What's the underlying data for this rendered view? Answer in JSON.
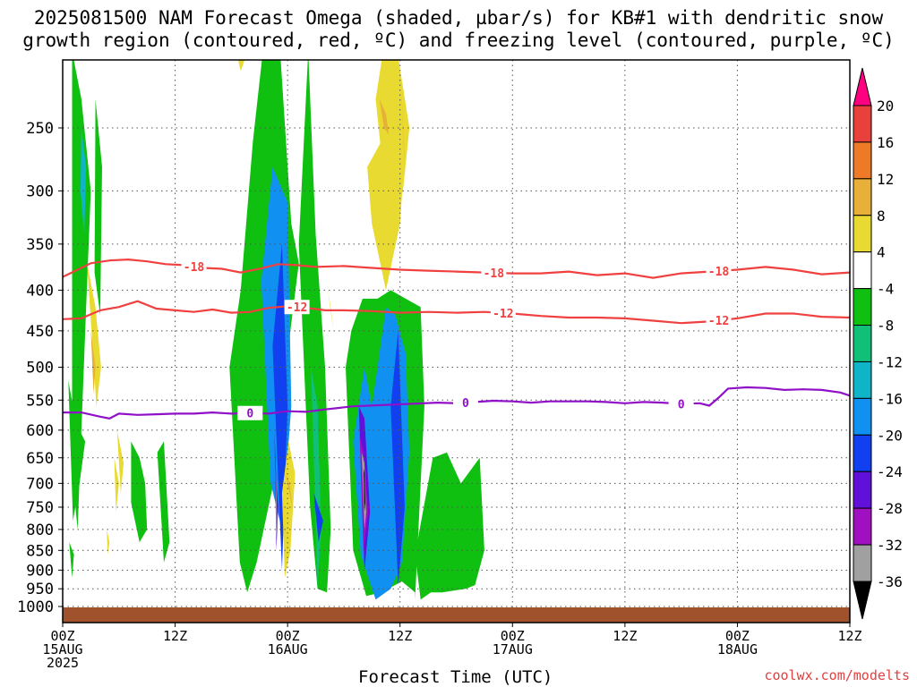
{
  "title_line1": "2025081500 NAM Forecast Omega (shaded, µbar/s) for KB#1 with dendritic snow",
  "title_line2": "growth region (contoured, red, ºC) and freezing level (contoured, purple, ºC)",
  "credit": "coolwx.com/modelts",
  "chart_data": {
    "type": "heatmap",
    "xlabel": "Forecast Time (UTC)",
    "x_ticks": [
      {
        "h": 0,
        "lines": [
          "00Z",
          "15AUG",
          "2025"
        ]
      },
      {
        "h": 12,
        "lines": [
          "12Z"
        ]
      },
      {
        "h": 24,
        "lines": [
          "00Z",
          "16AUG"
        ]
      },
      {
        "h": 36,
        "lines": [
          "12Z"
        ]
      },
      {
        "h": 48,
        "lines": [
          "00Z",
          "17AUG"
        ]
      },
      {
        "h": 60,
        "lines": [
          "12Z"
        ]
      },
      {
        "h": 72,
        "lines": [
          "00Z",
          "18AUG"
        ]
      },
      {
        "h": 84,
        "lines": [
          "12Z"
        ]
      }
    ],
    "xlim": [
      0,
      84
    ],
    "y_ticks": [
      250,
      300,
      350,
      400,
      450,
      500,
      550,
      600,
      650,
      700,
      750,
      800,
      850,
      900,
      950,
      1000
    ],
    "ylim": [
      200,
      1025
    ],
    "y_scale": "log-pressure",
    "grid": true,
    "colorbar": {
      "labels": [
        "20",
        "16",
        "12",
        "8",
        "4",
        "-4",
        "-8",
        "-12",
        "-16",
        "-20",
        "-24",
        "-28",
        "-32",
        "-36"
      ],
      "colors": [
        "#ff0080",
        "#e8403a",
        "#ee7a28",
        "#e8b038",
        "#e8da30",
        "#ffffff",
        "#10c010",
        "#10c078",
        "#10b4c8",
        "#1090f0",
        "#1040f0",
        "#6010d8",
        "#a010c0",
        "#a0a0a0",
        "#000000"
      ]
    },
    "contours": [
      {
        "label": "-18",
        "color": "#f04040",
        "points": [
          [
            0,
            385
          ],
          [
            3,
            370
          ],
          [
            5,
            367
          ],
          [
            7,
            366
          ],
          [
            9,
            368
          ],
          [
            11,
            371
          ],
          [
            13,
            372
          ],
          [
            15,
            375
          ],
          [
            17,
            376
          ],
          [
            19,
            380
          ],
          [
            21,
            376
          ],
          [
            23,
            371
          ],
          [
            25,
            372
          ],
          [
            27,
            374
          ],
          [
            30,
            373
          ],
          [
            33,
            375
          ],
          [
            36,
            377
          ],
          [
            39,
            378
          ],
          [
            42,
            379
          ],
          [
            45,
            380
          ],
          [
            48,
            381
          ],
          [
            51,
            381
          ],
          [
            54,
            379
          ],
          [
            57,
            383
          ],
          [
            60,
            381
          ],
          [
            63,
            386
          ],
          [
            66,
            381
          ],
          [
            69,
            379
          ],
          [
            72,
            377
          ],
          [
            75,
            374
          ],
          [
            78,
            377
          ],
          [
            81,
            382
          ],
          [
            84,
            380
          ]
        ],
        "labels_at": [
          14,
          46,
          70
        ]
      },
      {
        "label": "-12",
        "color": "#f04040",
        "points": [
          [
            0,
            435
          ],
          [
            2,
            434
          ],
          [
            4,
            424
          ],
          [
            6,
            420
          ],
          [
            8,
            413
          ],
          [
            10,
            422
          ],
          [
            12,
            424
          ],
          [
            14,
            426
          ],
          [
            16,
            423
          ],
          [
            18,
            427
          ],
          [
            20,
            426
          ],
          [
            22,
            421
          ],
          [
            24,
            419
          ],
          [
            26,
            421
          ],
          [
            28,
            424
          ],
          [
            30,
            424
          ],
          [
            33,
            425
          ],
          [
            36,
            427
          ],
          [
            39,
            426
          ],
          [
            42,
            427
          ],
          [
            45,
            426
          ],
          [
            48,
            428
          ],
          [
            51,
            431
          ],
          [
            54,
            433
          ],
          [
            57,
            433
          ],
          [
            60,
            434
          ],
          [
            63,
            437
          ],
          [
            66,
            440
          ],
          [
            69,
            438
          ],
          [
            72,
            434
          ],
          [
            75,
            428
          ],
          [
            78,
            428
          ],
          [
            81,
            432
          ],
          [
            84,
            433
          ]
        ],
        "labels_at": [
          25,
          47,
          70
        ]
      },
      {
        "label": "0",
        "color": "#9010c8",
        "points": [
          [
            0,
            570
          ],
          [
            2,
            570
          ],
          [
            4,
            577
          ],
          [
            5,
            580
          ],
          [
            6,
            572
          ],
          [
            8,
            574
          ],
          [
            10,
            573
          ],
          [
            12,
            572
          ],
          [
            14,
            572
          ],
          [
            16,
            570
          ],
          [
            18,
            572
          ],
          [
            20,
            571
          ],
          [
            22,
            572
          ],
          [
            24,
            568
          ],
          [
            26,
            569
          ],
          [
            28,
            565
          ],
          [
            31,
            560
          ],
          [
            34,
            558
          ],
          [
            37,
            556
          ],
          [
            40,
            554
          ],
          [
            42,
            555
          ],
          [
            44,
            553
          ],
          [
            46,
            551
          ],
          [
            48,
            552
          ],
          [
            50,
            554
          ],
          [
            52,
            552
          ],
          [
            54,
            552
          ],
          [
            56,
            552
          ],
          [
            58,
            553
          ],
          [
            60,
            555
          ],
          [
            62,
            553
          ],
          [
            64,
            554
          ],
          [
            66,
            556
          ],
          [
            68,
            555
          ],
          [
            69,
            559
          ],
          [
            70,
            546
          ],
          [
            71,
            532
          ],
          [
            73,
            530
          ],
          [
            75,
            531
          ],
          [
            77,
            534
          ],
          [
            79,
            533
          ],
          [
            81,
            534
          ],
          [
            83,
            538
          ],
          [
            84,
            543
          ]
        ],
        "labels_at": [
          20,
          43,
          66
        ]
      }
    ],
    "shaded_regions": [
      {
        "c": 6,
        "h": [
          1,
          2,
          3,
          2.5,
          2,
          1.6,
          1
        ],
        "p": [
          200,
          230,
          300,
          420,
          600,
          800,
          680
        ]
      },
      {
        "c": 8,
        "h": [
          2,
          2.5,
          2.3,
          1.9
        ],
        "p": [
          250,
          280,
          340,
          300
        ]
      },
      {
        "c": 6,
        "h": [
          3.5,
          4.2,
          4,
          3.4
        ],
        "p": [
          230,
          280,
          430,
          380
        ]
      },
      {
        "c": 6,
        "h": [
          0.6,
          1.1,
          1.8,
          2.4,
          1.8,
          1.1
        ],
        "p": [
          520,
          560,
          600,
          620,
          700,
          780
        ]
      },
      {
        "c": 4,
        "h": [
          2.6,
          3.5,
          4.1,
          3.6
        ],
        "p": [
          370,
          420,
          500,
          560
        ]
      },
      {
        "c": 3,
        "h": [
          3,
          3.5,
          3.3
        ],
        "p": [
          450,
          500,
          540
        ]
      },
      {
        "c": 4,
        "h": [
          5.5,
          6,
          5.7
        ],
        "p": [
          650,
          700,
          760
        ]
      },
      {
        "c": 4,
        "h": [
          4.7,
          5,
          4.8
        ],
        "p": [
          800,
          830,
          860
        ]
      },
      {
        "c": 6,
        "h": [
          0.7,
          1.2,
          1
        ],
        "p": [
          830,
          860,
          920
        ]
      },
      {
        "c": 6,
        "h": [
          7.3,
          8.2,
          8.8,
          9,
          8.2,
          7.3
        ],
        "p": [
          620,
          650,
          700,
          800,
          830,
          740
        ]
      },
      {
        "c": 6,
        "h": [
          17.8,
          19,
          20.3,
          21.8,
          23.2,
          24.4,
          25.2,
          24,
          22.5,
          20.7,
          19.7,
          18.9
        ],
        "p": [
          500,
          400,
          260,
          180,
          200,
          330,
          370,
          480,
          700,
          880,
          960,
          880
        ]
      },
      {
        "c": 9,
        "h": [
          21.2,
          22.4,
          24,
          24.4,
          23.4,
          22.2
        ],
        "p": [
          390,
          280,
          310,
          560,
          800,
          700
        ]
      },
      {
        "c": 10,
        "h": [
          22.4,
          23.4,
          24,
          23.4
        ],
        "p": [
          470,
          350,
          560,
          900
        ]
      },
      {
        "c": 11,
        "h": [
          22.6,
          22.8,
          23,
          22.8
        ],
        "p": [
          600,
          700,
          750,
          850
        ]
      },
      {
        "c": 13,
        "h": [
          22.7,
          22.8,
          22.9,
          22.8
        ],
        "p": [
          650,
          720,
          780,
          820
        ]
      },
      {
        "c": 4,
        "h": [
          23.4,
          24.1,
          24.8,
          24.3,
          23.7
        ],
        "p": [
          720,
          620,
          680,
          850,
          920
        ]
      },
      {
        "c": 3,
        "h": [
          23.8,
          24.2,
          24.6
        ],
        "p": [
          680,
          700,
          760
        ]
      },
      {
        "c": 6,
        "h": [
          25.2,
          26.2,
          27,
          28,
          28.6,
          28.2,
          27.2,
          26.4
        ],
        "p": [
          350,
          200,
          340,
          500,
          800,
          960,
          950,
          750
        ]
      },
      {
        "c": 7,
        "h": [
          26.5,
          27.2,
          27.6,
          27.2
        ],
        "p": [
          500,
          560,
          800,
          940
        ]
      },
      {
        "c": 10,
        "h": [
          26.8,
          27.3,
          27.8,
          27.3
        ],
        "p": [
          720,
          750,
          780,
          830
        ]
      },
      {
        "c": 6,
        "h": [
          30.2,
          30.8,
          32,
          33.6,
          35,
          36.6,
          38.2,
          38.6,
          37.6,
          37.6,
          36.2,
          34,
          32.4,
          31
        ],
        "p": [
          500,
          450,
          410,
          410,
          400,
          410,
          420,
          560,
          980,
          960,
          930,
          960,
          970,
          850
        ]
      },
      {
        "c": 9,
        "h": [
          31,
          32.2,
          33,
          33.6,
          34.5,
          35.5,
          36.6,
          37,
          36.2,
          35,
          33.4,
          31.8
        ],
        "p": [
          620,
          500,
          560,
          500,
          420,
          430,
          480,
          640,
          880,
          950,
          980,
          860
        ]
      },
      {
        "c": 11,
        "h": [
          31.6,
          32.2,
          32.8,
          32.2
        ],
        "p": [
          560,
          580,
          760,
          900
        ]
      },
      {
        "c": 12,
        "h": [
          31.7,
          32.1,
          32.6,
          32.1
        ],
        "p": [
          610,
          640,
          760,
          850
        ]
      },
      {
        "c": 10,
        "h": [
          35,
          35.8,
          36.5,
          35.8
        ],
        "p": [
          560,
          450,
          750,
          940
        ]
      },
      {
        "c": 13,
        "h": [
          31.9,
          32.2,
          32.4,
          32.2
        ],
        "p": [
          640,
          660,
          760,
          800
        ]
      },
      {
        "c": 14,
        "h": [
          32.1,
          32.2,
          32.3,
          32.2
        ],
        "p": [
          670,
          680,
          740,
          760
        ]
      },
      {
        "c": 6,
        "h": [
          37.6,
          39.5,
          41,
          42.5,
          44.5,
          45,
          44,
          43,
          40.5,
          39.3,
          38.2
        ],
        "p": [
          860,
          650,
          640,
          700,
          650,
          850,
          940,
          950,
          960,
          960,
          980
        ]
      },
      {
        "c": 4,
        "h": [
          33.4,
          34.2,
          35.7,
          37,
          36.3,
          35
        ],
        "p": [
          230,
          200,
          200,
          250,
          300,
          350
        ]
      },
      {
        "c": 4,
        "h": [
          32.5,
          34,
          36.5,
          36,
          34.5,
          33
        ],
        "p": [
          280,
          260,
          270,
          330,
          400,
          330
        ]
      },
      {
        "c": 3,
        "h": [
          33.8,
          34.5,
          34.8,
          34.3
        ],
        "p": [
          230,
          240,
          255,
          250
        ]
      },
      {
        "c": 3,
        "h": [
          36.1,
          36.4,
          36.6
        ],
        "p": [
          220,
          260,
          300
        ]
      },
      {
        "c": 4,
        "h": [
          28.3,
          28.6,
          28.9
        ],
        "p": [
          400,
          420,
          450
        ]
      },
      {
        "c": 4,
        "h": [
          18.5,
          19,
          19.5
        ],
        "p": [
          200,
          212,
          204
        ]
      },
      {
        "c": 4,
        "h": [
          5.8,
          6.5,
          6.2
        ],
        "p": [
          600,
          660,
          720
        ]
      },
      {
        "c": 6,
        "h": [
          10.1,
          10.8,
          11.4,
          10.8
        ],
        "p": [
          640,
          620,
          830,
          880
        ]
      }
    ]
  }
}
